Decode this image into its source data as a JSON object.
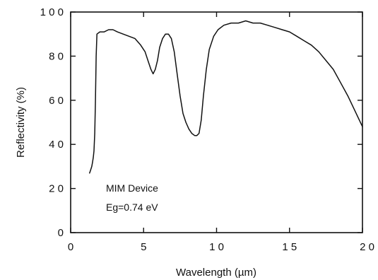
{
  "chart_data": {
    "type": "line",
    "title": "",
    "xlabel": "Wavelength (µm)",
    "ylabel": "Reflectivity (%)",
    "xlim": [
      0,
      20
    ],
    "ylim": [
      0,
      100
    ],
    "xticks": [
      0,
      5,
      10,
      15,
      20
    ],
    "yticks": [
      0,
      20,
      40,
      60,
      80,
      100
    ],
    "xtick_labels": [
      "0",
      "5",
      "1 0",
      "1 5",
      "2 0"
    ],
    "ytick_labels": [
      "0",
      "2 0",
      "4 0",
      "6 0",
      "8 0",
      "1 0 0"
    ],
    "grid": false,
    "annotations": [
      "MIM Device",
      "Eg=0.74 eV"
    ],
    "series": [
      {
        "x": [
          1.3,
          1.35,
          1.4,
          1.45,
          1.5,
          1.55,
          1.6,
          1.65,
          1.7,
          1.75,
          1.8,
          2.0,
          2.3,
          2.6,
          2.9,
          3.2,
          3.6,
          4.0,
          4.4,
          4.8,
          5.1,
          5.3,
          5.5,
          5.65,
          5.8,
          5.95,
          6.1,
          6.3,
          6.5,
          6.7,
          6.9,
          7.1,
          7.3,
          7.5,
          7.7,
          7.9,
          8.1,
          8.3,
          8.5,
          8.65,
          8.8,
          8.95,
          9.1,
          9.3,
          9.5,
          9.8,
          10.1,
          10.5,
          11.0,
          11.5,
          12.0,
          12.5,
          13.0,
          13.5,
          14.0,
          14.5,
          15.0,
          15.5,
          16.0,
          16.5,
          17.0,
          17.5,
          18.0,
          18.5,
          19.0,
          19.5,
          20.0
        ],
        "y": [
          27,
          28,
          29,
          30,
          32,
          34,
          37,
          45,
          60,
          80,
          90,
          91,
          91,
          92,
          92,
          91,
          90,
          89,
          88,
          85,
          82,
          78,
          74,
          72,
          74,
          78,
          84,
          88,
          90,
          90,
          88,
          82,
          72,
          62,
          54,
          50,
          47,
          45,
          44,
          44,
          45,
          51,
          62,
          74,
          83,
          89,
          92,
          94,
          95,
          95,
          96,
          95,
          95,
          94,
          93,
          92,
          91,
          89,
          87,
          85,
          82,
          78,
          74,
          68,
          62,
          55,
          48
        ]
      }
    ]
  }
}
